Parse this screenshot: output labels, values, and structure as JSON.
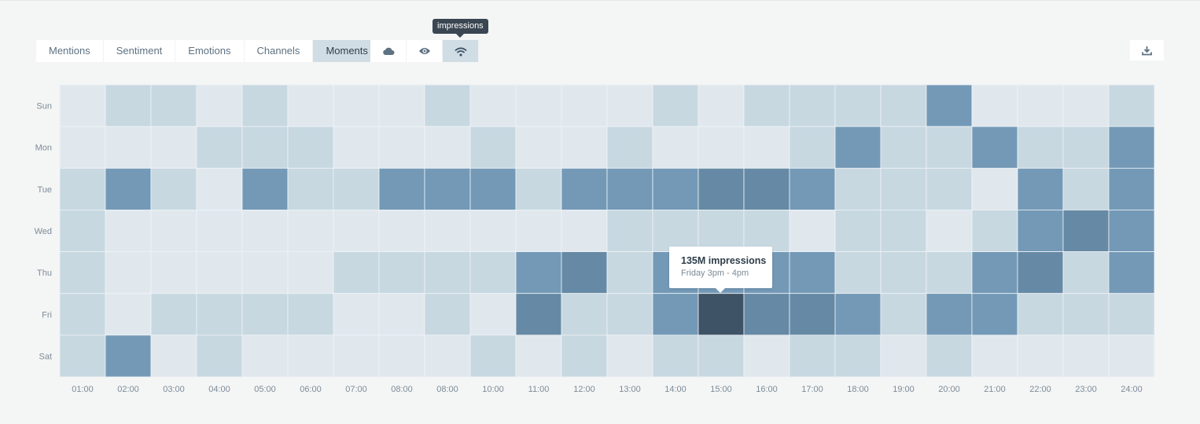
{
  "tabs": [
    {
      "label": "Mentions",
      "active": false
    },
    {
      "label": "Sentiment",
      "active": false
    },
    {
      "label": "Emotions",
      "active": false
    },
    {
      "label": "Channels",
      "active": false
    },
    {
      "label": "Moments",
      "active": true
    }
  ],
  "icon_tabs": [
    {
      "icon": "cloud-icon",
      "active": false
    },
    {
      "icon": "eye-icon",
      "active": false
    },
    {
      "icon": "wifi-icon",
      "active": true
    }
  ],
  "icon_tooltip": "impressions",
  "download_icon": "download-icon",
  "tooltip": {
    "title": "135M impressions",
    "subtitle": "Friday 3pm - 4pm"
  },
  "colors": {
    "levels": [
      "#e0e8ee",
      "#c7d8e1",
      "#7399b7",
      "#668aa5",
      "#3f5366"
    ],
    "accent": "#d0dde5"
  },
  "chart_data": {
    "type": "heatmap",
    "title": "",
    "xlabel": "",
    "ylabel": "",
    "x": [
      "01:00",
      "02:00",
      "03:00",
      "04:00",
      "05:00",
      "06:00",
      "07:00",
      "08:00",
      "08:00",
      "10:00",
      "11:00",
      "12:00",
      "13:00",
      "14:00",
      "15:00",
      "16:00",
      "17:00",
      "18:00",
      "19:00",
      "20:00",
      "21:00",
      "22:00",
      "23:00",
      "24:00"
    ],
    "y": [
      "Sun",
      "Mon",
      "Tue",
      "Wed",
      "Thu",
      "Fri",
      "Sat"
    ],
    "values": [
      [
        0,
        1,
        1,
        0,
        1,
        0,
        0,
        0,
        1,
        0,
        0,
        0,
        0,
        1,
        0,
        1,
        1,
        1,
        1,
        2,
        0,
        0,
        0,
        1
      ],
      [
        0,
        0,
        0,
        1,
        1,
        1,
        0,
        0,
        0,
        1,
        0,
        0,
        1,
        0,
        0,
        0,
        1,
        2,
        1,
        1,
        2,
        1,
        1,
        2
      ],
      [
        1,
        2,
        1,
        0,
        2,
        1,
        1,
        2,
        2,
        2,
        1,
        2,
        2,
        2,
        3,
        3,
        2,
        1,
        1,
        1,
        0,
        2,
        1,
        2
      ],
      [
        1,
        0,
        0,
        0,
        0,
        0,
        0,
        0,
        0,
        0,
        0,
        0,
        1,
        1,
        1,
        1,
        0,
        1,
        1,
        0,
        1,
        2,
        3,
        2
      ],
      [
        1,
        0,
        0,
        0,
        0,
        0,
        1,
        1,
        1,
        1,
        2,
        3,
        1,
        2,
        2,
        2,
        2,
        1,
        1,
        1,
        2,
        3,
        1,
        2
      ],
      [
        1,
        0,
        1,
        1,
        1,
        1,
        0,
        0,
        1,
        0,
        3,
        1,
        1,
        2,
        4,
        3,
        3,
        2,
        1,
        2,
        2,
        1,
        1,
        1
      ],
      [
        1,
        2,
        0,
        1,
        0,
        0,
        0,
        0,
        0,
        1,
        0,
        1,
        0,
        1,
        1,
        0,
        1,
        1,
        0,
        1,
        0,
        0,
        0,
        0
      ]
    ],
    "value_scale": "impressions level (0 = lowest, 4 = highest)",
    "highlight": {
      "day": "Fri",
      "hour": "15:00"
    }
  }
}
